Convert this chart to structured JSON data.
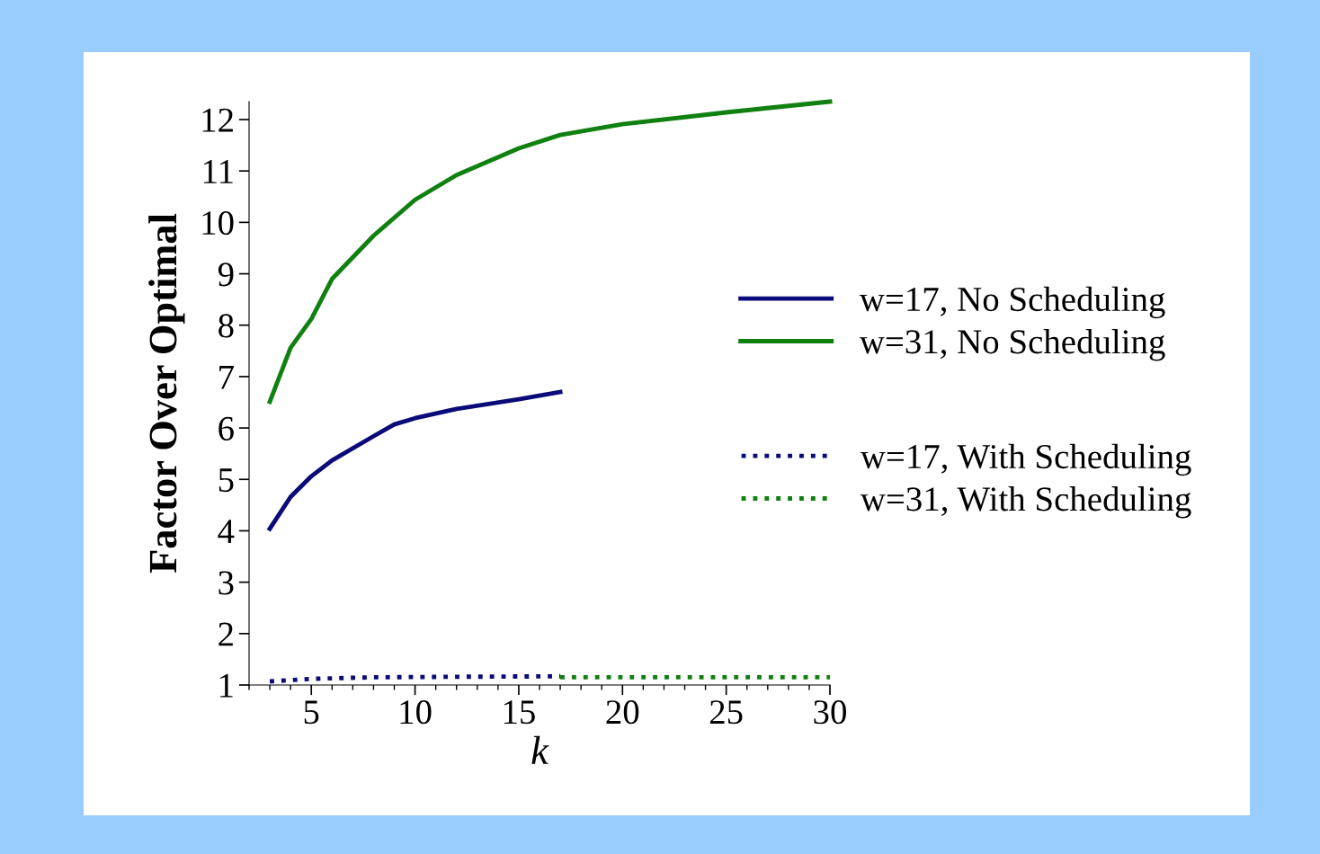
{
  "chart_data": {
    "type": "line",
    "xlabel": "k",
    "ylabel": "Factor Over Optimal",
    "xlim": [
      2,
      30
    ],
    "xticks": [
      5,
      10,
      15,
      20,
      25,
      30
    ],
    "ylim": [
      1,
      12.35
    ],
    "yticks": [
      1,
      2,
      3,
      4,
      5,
      6,
      7,
      8,
      9,
      10,
      11,
      12
    ],
    "grid": false,
    "legend": "right",
    "series": [
      {
        "name": "w=17, No Scheduling",
        "color": "#0a0a78",
        "line_style": "solid",
        "x": [
          3,
          4,
          5,
          6,
          8,
          9,
          10,
          12,
          15,
          17
        ],
        "values": [
          4.04,
          4.66,
          5.06,
          5.37,
          5.84,
          6.07,
          6.19,
          6.37,
          6.56,
          6.7
        ]
      },
      {
        "name": "w=31, No Scheduling",
        "color": "#108010",
        "line_style": "solid",
        "x": [
          3,
          4,
          5,
          6,
          8,
          10,
          12,
          15,
          17,
          20,
          25,
          30
        ],
        "values": [
          6.51,
          7.56,
          8.12,
          8.9,
          9.74,
          10.44,
          10.92,
          11.44,
          11.7,
          11.91,
          12.14,
          12.35
        ]
      },
      {
        "name": "w=17, With Scheduling",
        "color": "#0a0a78",
        "line_style": "dotted",
        "x": [
          3,
          5,
          8,
          12,
          17
        ],
        "values": [
          1.07,
          1.12,
          1.15,
          1.16,
          1.17
        ]
      },
      {
        "name": "w=31, With Scheduling",
        "color": "#108010",
        "line_style": "dotted",
        "x": [
          17,
          20,
          25,
          30
        ],
        "values": [
          1.15,
          1.15,
          1.15,
          1.15
        ]
      }
    ]
  }
}
